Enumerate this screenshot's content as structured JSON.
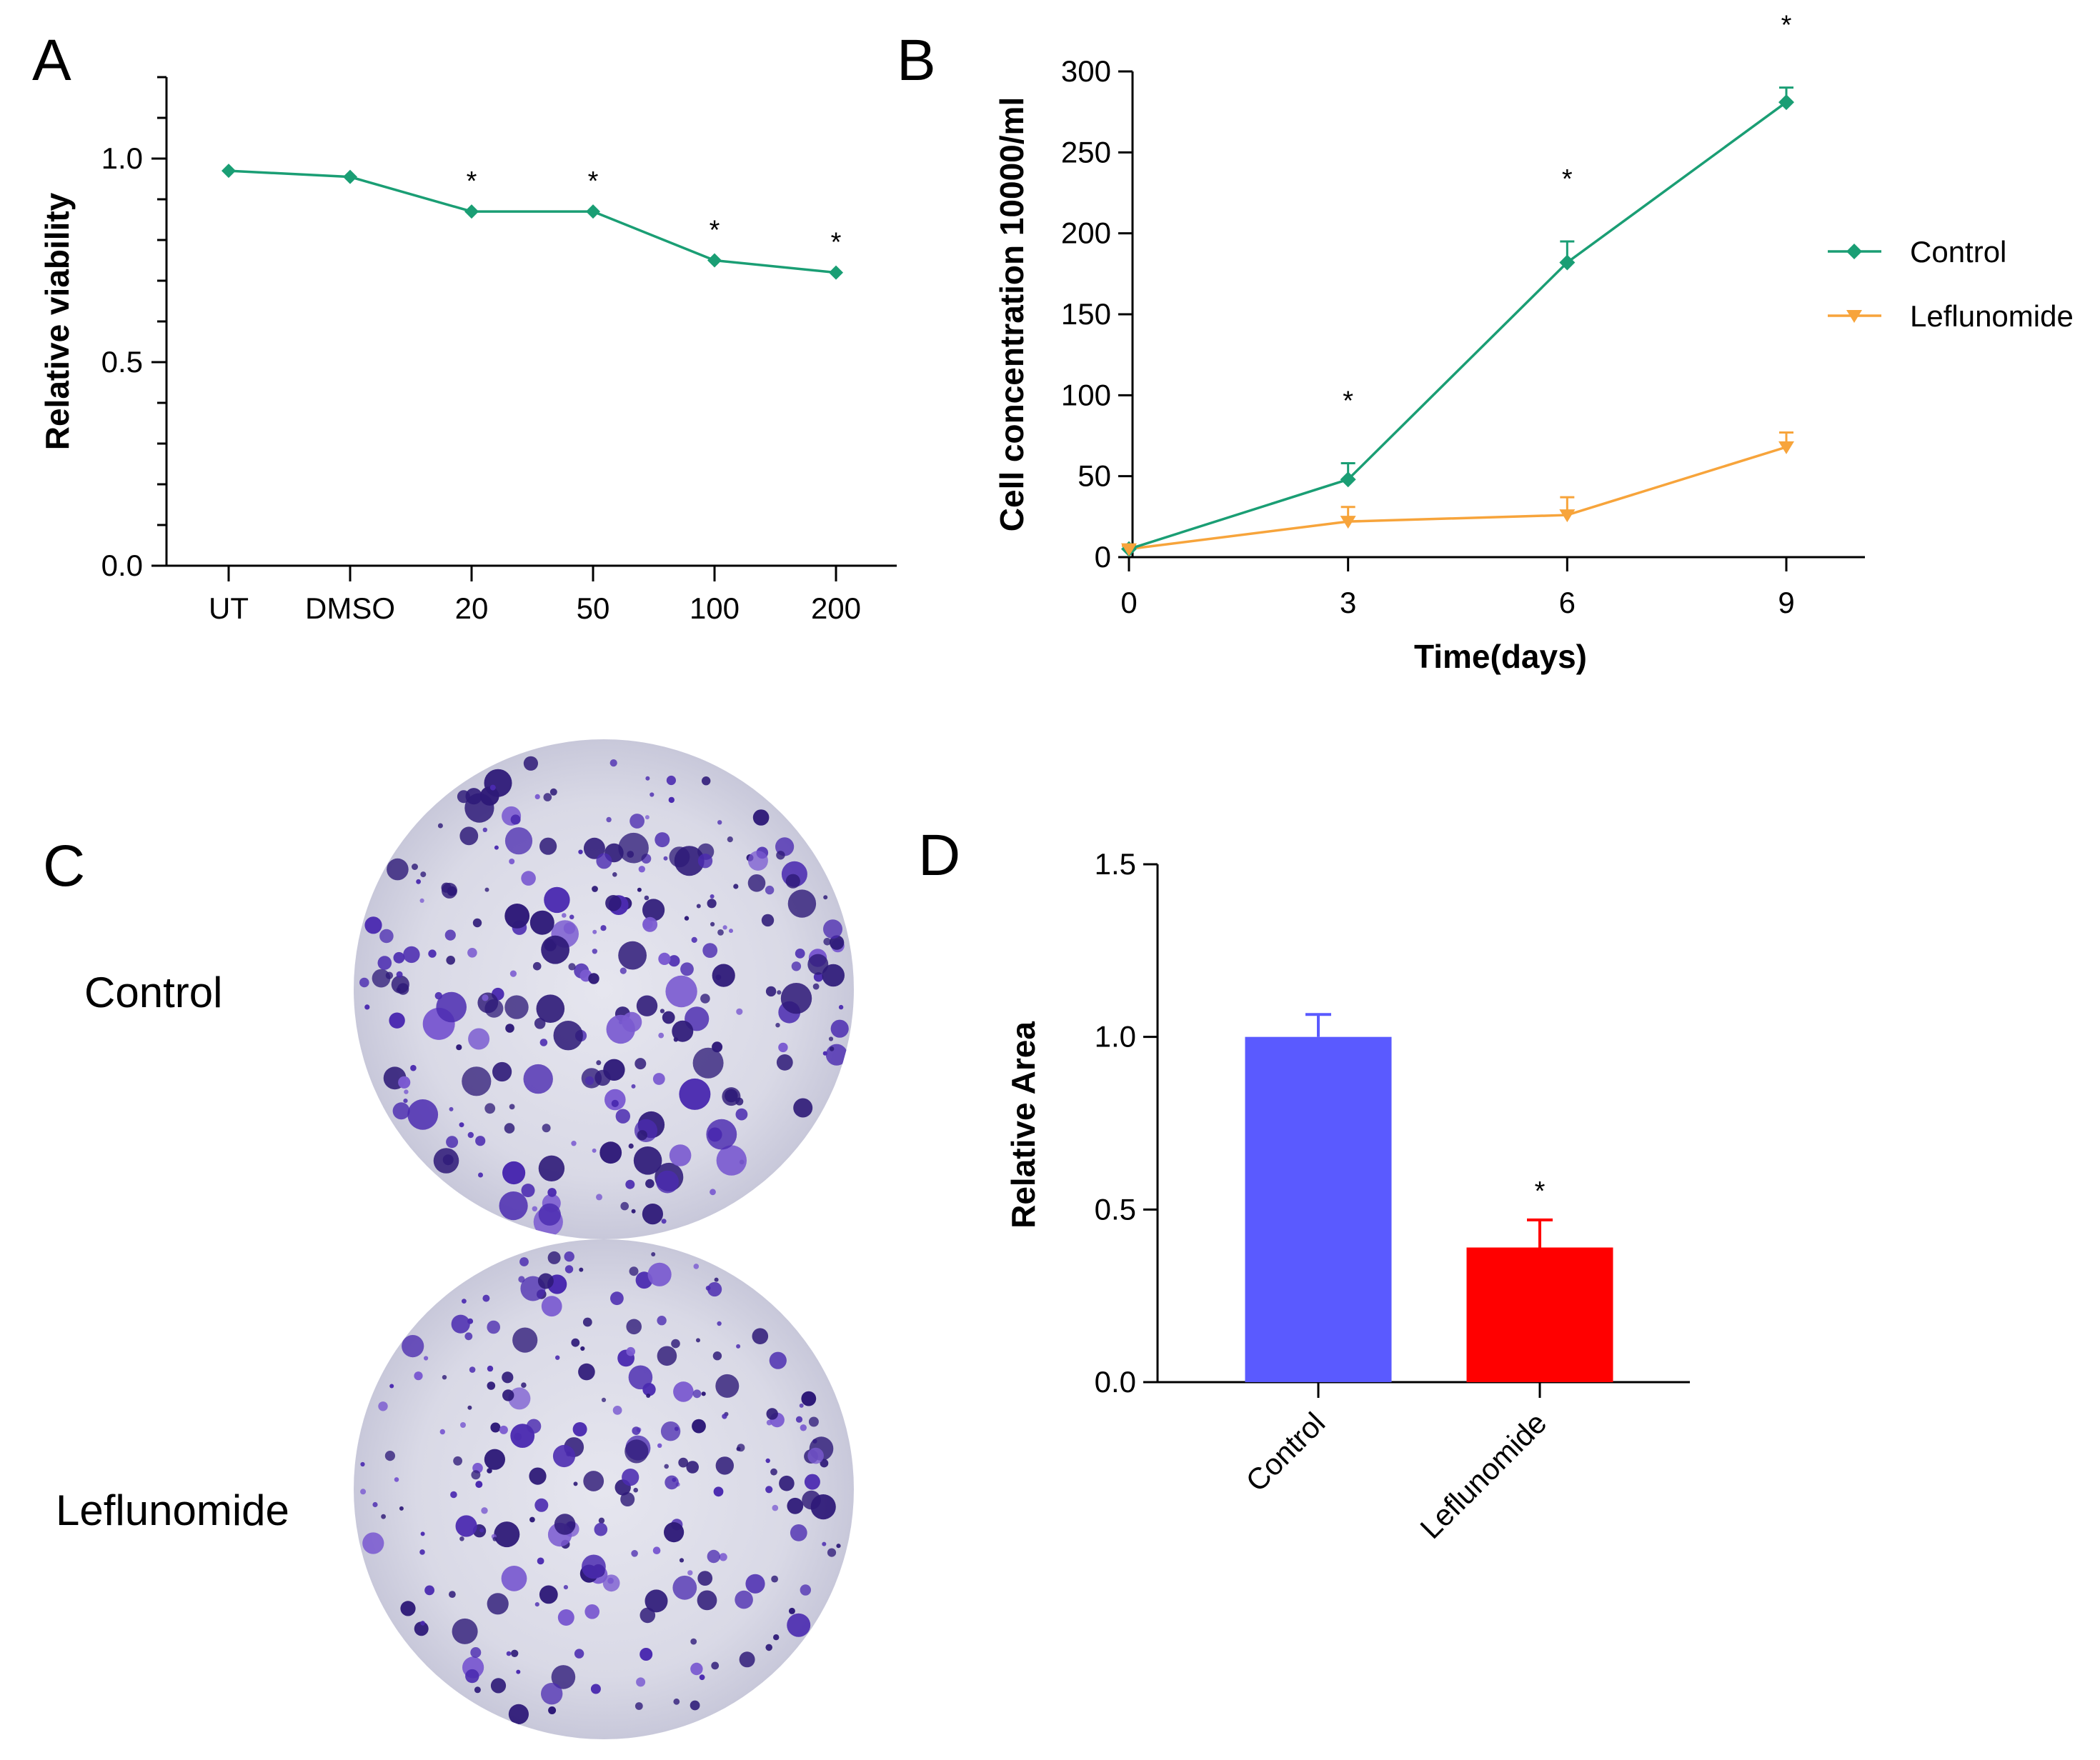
{
  "panels": {
    "A": "A",
    "B": "B",
    "C": "C",
    "D": "D"
  },
  "images": {
    "control_label": "Control",
    "leflunomide_label": "Leflunomide"
  },
  "colors": {
    "control": "#1a9e74",
    "leflunomide": "#f7a43b",
    "bar_control": "#5a5aff",
    "bar_leflunomide": "#ff0000",
    "colony": "#4a2aa0",
    "dish": "#d9d9e8"
  },
  "chart_data": [
    {
      "id": "A",
      "type": "line",
      "title": "",
      "xlabel": "",
      "ylabel": "Relative viability",
      "categories": [
        "UT",
        "DMSO",
        "20",
        "50",
        "100",
        "200"
      ],
      "ylim": [
        0,
        1.2
      ],
      "yticks": [
        "0.0",
        "0.5",
        "1.0"
      ],
      "series": [
        {
          "name": "Relative viability",
          "values": [
            0.97,
            0.955,
            0.87,
            0.87,
            0.75,
            0.72
          ]
        }
      ],
      "annotations": [
        "",
        "",
        "*",
        "*",
        "*",
        "*"
      ]
    },
    {
      "id": "B",
      "type": "line",
      "title": "",
      "xlabel": "Time(days)",
      "ylabel": "Cell concentration 10000/ml",
      "x": [
        0,
        3,
        6,
        9
      ],
      "xticks": [
        "0",
        "3",
        "6",
        "9"
      ],
      "ylim": [
        0,
        300
      ],
      "yticks": [
        "0",
        "50",
        "100",
        "150",
        "200",
        "250",
        "300"
      ],
      "series": [
        {
          "name": "Control",
          "values": [
            5,
            48,
            182,
            281
          ],
          "errors": [
            2,
            10,
            13,
            9
          ]
        },
        {
          "name": "Leflunomide",
          "values": [
            5,
            22,
            26,
            68
          ],
          "errors": [
            2,
            9,
            11,
            9
          ]
        }
      ],
      "annotations": [
        "",
        "*",
        "*",
        "*"
      ],
      "legend": "right"
    },
    {
      "id": "D",
      "type": "bar",
      "title": "",
      "xlabel": "",
      "ylabel": "Relative Area",
      "categories": [
        "Control",
        "Leflunomide"
      ],
      "values": [
        1.0,
        0.39
      ],
      "errors": [
        0.065,
        0.08
      ],
      "ylim": [
        0,
        1.5
      ],
      "yticks": [
        "0.0",
        "0.5",
        "1.0",
        "1.5"
      ],
      "annotations": [
        "",
        "*"
      ]
    }
  ]
}
